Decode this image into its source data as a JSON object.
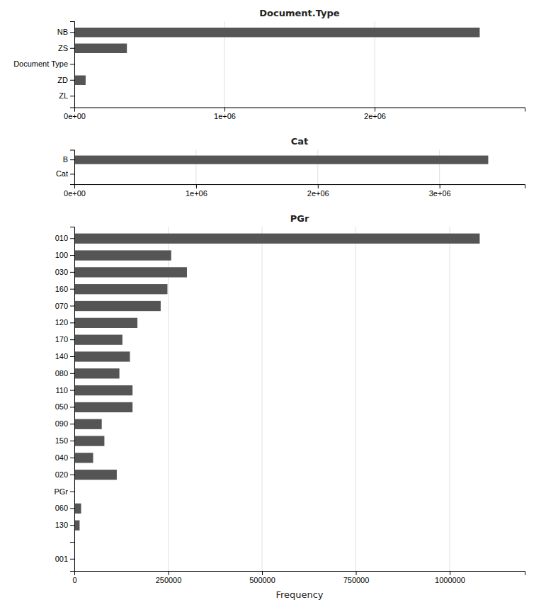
{
  "chart_data": [
    {
      "type": "bar",
      "orientation": "horizontal",
      "title": "Document.Type",
      "categories": [
        "NB",
        "ZS",
        "Document Type",
        "ZD",
        "ZL"
      ],
      "values": [
        2700000,
        350000,
        0,
        75000,
        0
      ],
      "color": "#555555",
      "xlim": [
        0,
        3000000
      ],
      "xticks": [
        {
          "value": 0,
          "label": "0e+00"
        },
        {
          "value": 1000000,
          "label": "1e+06"
        },
        {
          "value": 2000000,
          "label": "2e+06"
        }
      ],
      "grid": true
    },
    {
      "type": "bar",
      "orientation": "horizontal",
      "title": "Cat",
      "categories": [
        "B",
        "Cat"
      ],
      "values": [
        3400000,
        0
      ],
      "color": "#555555",
      "xlim": [
        0,
        3700000
      ],
      "xticks": [
        {
          "value": 0,
          "label": "0e+00"
        },
        {
          "value": 1000000,
          "label": "1e+06"
        },
        {
          "value": 2000000,
          "label": "2e+06"
        },
        {
          "value": 3000000,
          "label": "3e+06"
        }
      ],
      "grid": true
    },
    {
      "type": "bar",
      "orientation": "horizontal",
      "title": "PGr",
      "categories": [
        "010",
        "100",
        "030",
        "160",
        "070",
        "120",
        "170",
        "140",
        "080",
        "110",
        "050",
        "090",
        "150",
        "040",
        "020",
        "PGr",
        "060",
        "130",
        null,
        "001"
      ],
      "values": [
        1080000,
        258000,
        300000,
        248000,
        230000,
        168000,
        128000,
        148000,
        120000,
        155000,
        155000,
        73000,
        80000,
        50000,
        113000,
        0,
        18000,
        14000,
        0,
        0
      ],
      "color": "#555555",
      "xlim": [
        0,
        1200000
      ],
      "xticks": [
        0,
        250000,
        500000,
        750000,
        1000000
      ],
      "xlabel": "Frequency",
      "grid": true
    }
  ]
}
